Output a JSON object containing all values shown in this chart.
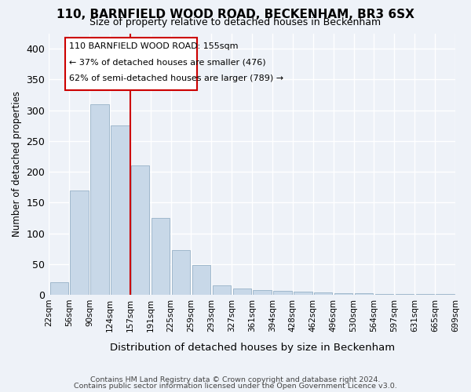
{
  "title": "110, BARNFIELD WOOD ROAD, BECKENHAM, BR3 6SX",
  "subtitle": "Size of property relative to detached houses in Beckenham",
  "xlabel": "Distribution of detached houses by size in Beckenham",
  "ylabel": "Number of detached properties",
  "bar_color": "#c8d8e8",
  "bar_edge_color": "#a0b8cc",
  "background_color": "#eef2f8",
  "grid_color": "#ffffff",
  "annotation_text_line1": "110 BARNFIELD WOOD ROAD: 155sqm",
  "annotation_text_line2": "← 37% of detached houses are smaller (476)",
  "annotation_text_line3": "62% of semi-detached houses are larger (789) →",
  "footer_line1": "Contains HM Land Registry data © Crown copyright and database right 2024.",
  "footer_line2": "Contains public sector information licensed under the Open Government Licence v3.0.",
  "bin_labels": [
    "22sqm",
    "56sqm",
    "90sqm",
    "124sqm",
    "157sqm",
    "191sqm",
    "225sqm",
    "259sqm",
    "293sqm",
    "327sqm",
    "361sqm",
    "394sqm",
    "428sqm",
    "462sqm",
    "496sqm",
    "530sqm",
    "564sqm",
    "597sqm",
    "631sqm",
    "665sqm",
    "699sqm"
  ],
  "bar_heights": [
    20,
    170,
    310,
    275,
    210,
    125,
    73,
    48,
    15,
    10,
    8,
    6,
    5,
    4,
    3,
    3,
    2,
    2,
    1,
    1
  ],
  "ylim": [
    0,
    425
  ],
  "yticks": [
    0,
    50,
    100,
    150,
    200,
    250,
    300,
    350,
    400
  ],
  "annotation_box_color": "#ffffff",
  "annotation_box_edge": "#cc0000",
  "annotation_line_color": "#cc0000",
  "red_line_x": 3.5
}
